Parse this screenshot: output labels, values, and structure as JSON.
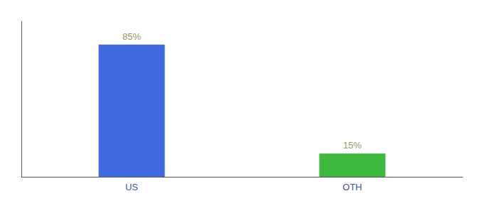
{
  "chart_data": {
    "type": "bar",
    "categories": [
      "US",
      "OTH"
    ],
    "values": [
      85,
      15
    ],
    "value_labels": [
      "85%",
      "15%"
    ],
    "colors": [
      "#4169e0",
      "#3dba3d"
    ],
    "ylim": [
      0,
      100
    ],
    "data_labels": true,
    "tick_labels": "x",
    "grid": false
  }
}
